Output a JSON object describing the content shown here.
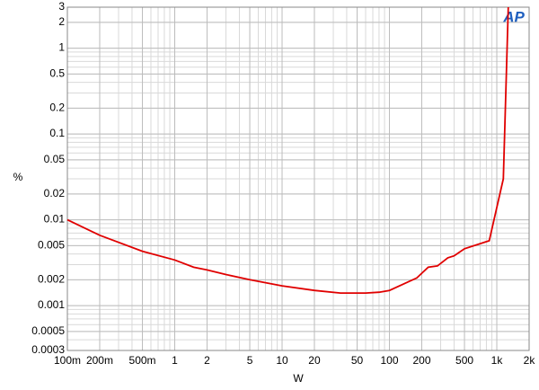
{
  "chart_data": {
    "type": "line",
    "x_label": "W",
    "y_label": "%",
    "logo": "AP",
    "log_x": true,
    "log_y": true,
    "grid": true,
    "xlim": [
      0.1,
      2000
    ],
    "ylim": [
      0.0003,
      3
    ],
    "xticks": [
      {
        "value": 0.1,
        "label": "100m"
      },
      {
        "value": 0.2,
        "label": "200m"
      },
      {
        "value": 0.5,
        "label": "500m"
      },
      1,
      2,
      5,
      10,
      20,
      50,
      100,
      200,
      500,
      {
        "value": 1000,
        "label": "1k"
      },
      {
        "value": 2000,
        "label": "2k"
      }
    ],
    "yticks": [
      3,
      2,
      1,
      0.5,
      0.2,
      0.1,
      0.05,
      0.02,
      0.01,
      0.005,
      0.002,
      0.001,
      0.0005,
      0.0003
    ],
    "series": [
      {
        "color": "#e00000",
        "x": [
          0.1,
          0.2,
          0.5,
          1,
          1.5,
          2,
          3,
          5,
          10,
          20,
          35,
          60,
          80,
          100,
          180,
          230,
          280,
          350,
          400,
          500,
          850,
          1150,
          1280
        ],
        "values": [
          0.01,
          0.0066,
          0.0043,
          0.0034,
          0.0028,
          0.0026,
          0.0023,
          0.002,
          0.0017,
          0.0015,
          0.0014,
          0.0014,
          0.00143,
          0.0015,
          0.0021,
          0.0028,
          0.0029,
          0.0036,
          0.0038,
          0.0046,
          0.0057,
          0.03,
          3
        ]
      }
    ]
  }
}
